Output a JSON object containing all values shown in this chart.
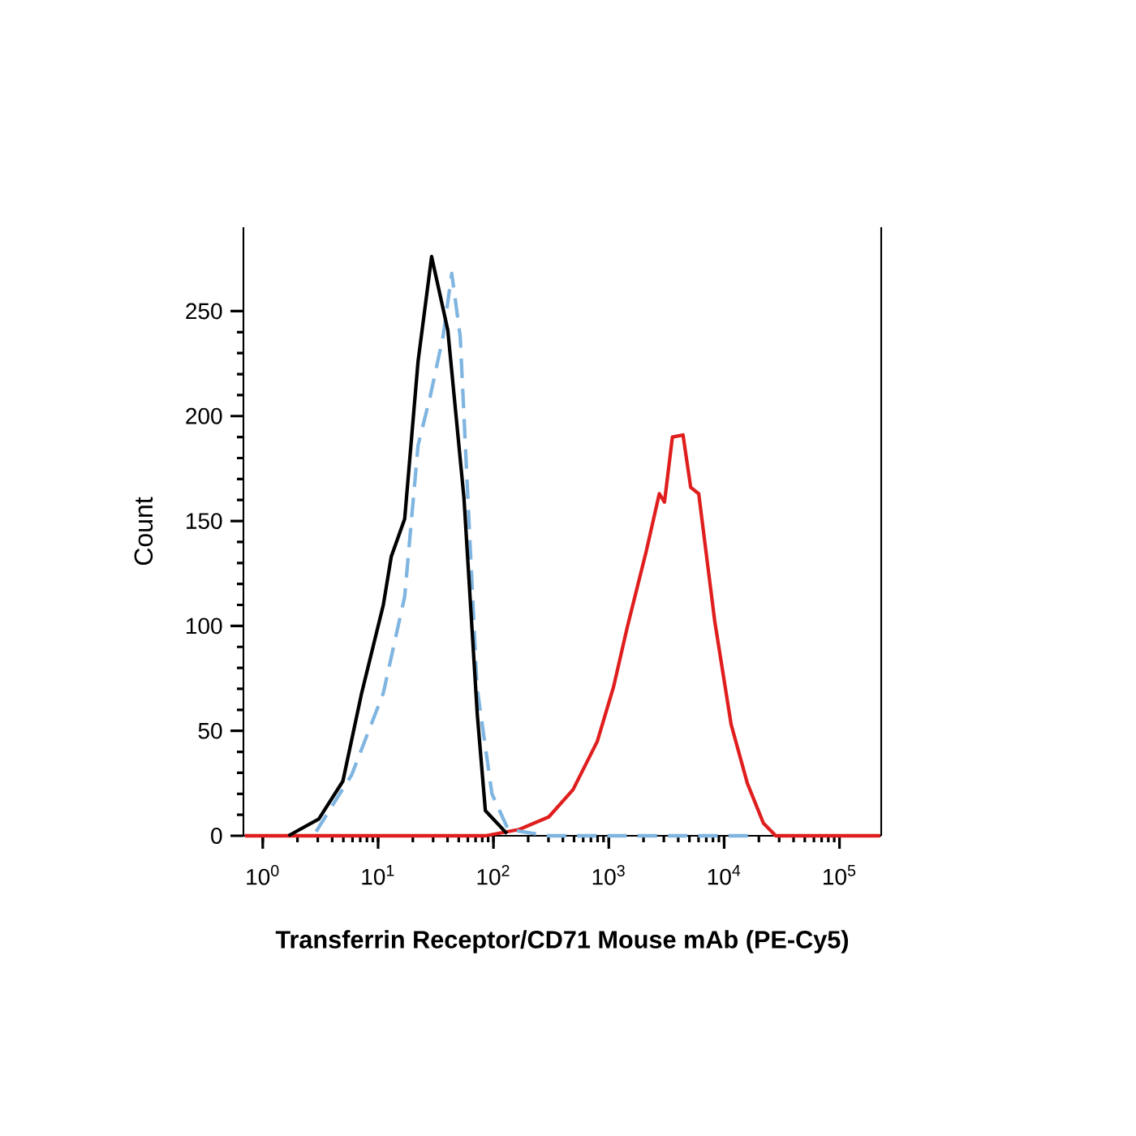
{
  "chart_data": {
    "type": "line",
    "log": "x",
    "xlabel": "Transferrin Receptor/CD71 Mouse mAb (PE-Cy5)",
    "ylabel": "Count",
    "xlim": [
      0.68,
      230000
    ],
    "ylim": [
      0,
      290
    ],
    "xticks": [
      {
        "value": 1,
        "label": "10$^{0}$"
      },
      {
        "value": 10,
        "label": "10$^{1}$"
      },
      {
        "value": 100,
        "label": "10$^{2}$"
      },
      {
        "value": 1000,
        "label": "10$^{3}$"
      },
      {
        "value": 10000,
        "label": "10$^{4}$"
      },
      {
        "value": 100000,
        "label": "10$^{5}$"
      }
    ],
    "yticks": [
      0,
      50,
      100,
      150,
      200,
      250
    ],
    "grid": false,
    "marker": "none",
    "series": [
      {
        "color": "#e01e1e",
        "line_style": "solid",
        "x": [
          0.7,
          85,
          167,
          302,
          490,
          795,
          1100,
          1440,
          2100,
          2740,
          3040,
          3560,
          4400,
          5130,
          6020,
          8300,
          11500,
          15900,
          21900,
          28000,
          225000
        ],
        "values": [
          0,
          0,
          3,
          9,
          22,
          45,
          71,
          99,
          135,
          163,
          159,
          190,
          191,
          166,
          163,
          102,
          53,
          25,
          6,
          0,
          0
        ]
      },
      {
        "color": "#7fb5e0",
        "line_style": "dashed",
        "x": [
          2.9,
          5.9,
          11.1,
          17,
          22.2,
          28.2,
          36.6,
          43.5,
          51.5,
          60,
          72,
          97,
          134,
          300,
          20000
        ],
        "values": [
          2,
          29,
          68,
          114,
          186,
          209,
          238,
          268,
          238,
          161,
          71,
          20,
          3,
          0,
          0
        ]
      },
      {
        "color": "#000000",
        "line_style": "solid",
        "x": [
          1.67,
          3.06,
          4.95,
          7.2,
          11.1,
          13,
          17,
          22.2,
          29.1,
          40.2,
          55.5,
          72.4,
          85.1,
          131
        ],
        "values": [
          0,
          8,
          26,
          68,
          110,
          133,
          151,
          226,
          276,
          241,
          161,
          58,
          12,
          1
        ]
      }
    ]
  }
}
